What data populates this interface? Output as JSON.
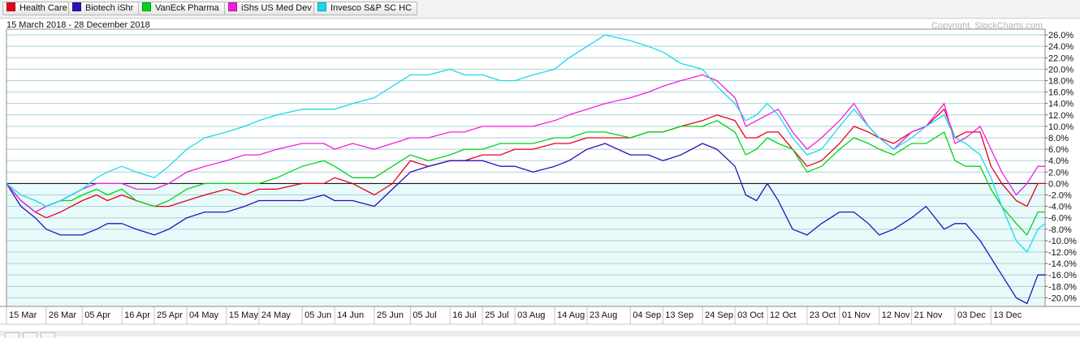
{
  "legend": [
    {
      "name": "Health Care",
      "color": "#e8001c"
    },
    {
      "name": "Biotech iShr",
      "color": "#2a10b8"
    },
    {
      "name": "VanEck Pharma",
      "color": "#00d418"
    },
    {
      "name": "iShs US Med Dev",
      "color": "#f01ee0"
    },
    {
      "name": "Invesco S&P SC HC",
      "color": "#1ad8ec"
    }
  ],
  "header": {
    "date_range": "15 March 2018 - 28 December 2018",
    "copyright": "Copyright, StockCharts.com"
  },
  "chart_data": {
    "type": "line",
    "ylim": [
      -21.5,
      27
    ],
    "y_ticks": [
      26,
      24,
      22,
      20,
      18,
      16,
      14,
      12,
      10,
      8,
      6,
      4,
      2,
      0,
      -2,
      -4,
      -6,
      -8,
      -10,
      -12,
      -14,
      -16,
      -18,
      -20
    ],
    "y_tick_labels": [
      "26.0%",
      "24.0%",
      "22.0%",
      "20.0%",
      "18.0%",
      "16.0%",
      "14.0%",
      "12.0%",
      "10.0%",
      "8.0%",
      "6.0%",
      "4.0%",
      "2.0%",
      "0.0%",
      "-2.0%",
      "-4.0%",
      "-6.0%",
      "-8.0%",
      "-10.0%",
      "-12.0%",
      "-14.0%",
      "-16.0%",
      "-18.0%",
      "-20.0%"
    ],
    "x_labels": [
      {
        "label": "15 Mar",
        "day": 0
      },
      {
        "label": "26 Mar",
        "day": 11
      },
      {
        "label": "05 Apr",
        "day": 21
      },
      {
        "label": "16 Apr",
        "day": 32
      },
      {
        "label": "25 Apr",
        "day": 41
      },
      {
        "label": "04 May",
        "day": 50
      },
      {
        "label": "15 May",
        "day": 61
      },
      {
        "label": "24 May",
        "day": 70
      },
      {
        "label": "05 Jun",
        "day": 82
      },
      {
        "label": "14 Jun",
        "day": 91
      },
      {
        "label": "25 Jun",
        "day": 102
      },
      {
        "label": "05 Jul",
        "day": 112
      },
      {
        "label": "16 Jul",
        "day": 123
      },
      {
        "label": "25 Jul",
        "day": 132
      },
      {
        "label": "03 Aug",
        "day": 141
      },
      {
        "label": "14 Aug",
        "day": 152
      },
      {
        "label": "23 Aug",
        "day": 161
      },
      {
        "label": "04 Sep",
        "day": 173
      },
      {
        "label": "13 Sep",
        "day": 182
      },
      {
        "label": "24 Sep",
        "day": 193
      },
      {
        "label": "03 Oct",
        "day": 202
      },
      {
        "label": "12 Oct",
        "day": 211
      },
      {
        "label": "23 Oct",
        "day": 222
      },
      {
        "label": "01 Nov",
        "day": 231
      },
      {
        "label": "12 Nov",
        "day": 242
      },
      {
        "label": "21 Nov",
        "day": 251
      },
      {
        "label": "03 Dec",
        "day": 263
      },
      {
        "label": "13 Dec",
        "day": 273
      }
    ],
    "x_range_days": [
      0,
      288
    ],
    "series": [
      {
        "name": "Health Care",
        "color": "#e8001c",
        "x": [
          0,
          4,
          8,
          11,
          15,
          18,
          21,
          25,
          28,
          32,
          36,
          41,
          45,
          50,
          55,
          61,
          66,
          70,
          75,
          82,
          88,
          91,
          96,
          102,
          107,
          112,
          117,
          123,
          127,
          132,
          137,
          141,
          146,
          152,
          156,
          161,
          166,
          173,
          178,
          182,
          187,
          193,
          197,
          202,
          205,
          208,
          211,
          214,
          218,
          222,
          226,
          231,
          235,
          239,
          242,
          246,
          251,
          255,
          260,
          263,
          266,
          270,
          273,
          276,
          280,
          283,
          286,
          288
        ],
        "y": [
          0,
          -3,
          -5,
          -6,
          -5,
          -4,
          -3,
          -2,
          -3,
          -2,
          -3,
          -4,
          -4,
          -3,
          -2,
          -1,
          -2,
          -1,
          -1,
          0,
          0,
          1,
          0,
          -2,
          0,
          4,
          3,
          4,
          4,
          5,
          5,
          6,
          6,
          7,
          7,
          8,
          8,
          8,
          9,
          9,
          10,
          11,
          12,
          11,
          8,
          8,
          9,
          9,
          6,
          3,
          4,
          7,
          10,
          9,
          8,
          7,
          9,
          10,
          13,
          8,
          9,
          9,
          3,
          0,
          -3,
          -4,
          0,
          0
        ]
      },
      {
        "name": "Biotech iShr",
        "color": "#2a10b8",
        "x": [
          0,
          4,
          8,
          11,
          15,
          18,
          21,
          25,
          28,
          32,
          36,
          41,
          45,
          50,
          55,
          61,
          66,
          70,
          75,
          82,
          88,
          91,
          96,
          102,
          107,
          112,
          117,
          123,
          127,
          132,
          137,
          141,
          146,
          152,
          156,
          161,
          166,
          173,
          178,
          182,
          187,
          193,
          197,
          202,
          205,
          208,
          211,
          214,
          218,
          222,
          226,
          231,
          235,
          239,
          242,
          246,
          251,
          255,
          260,
          263,
          266,
          270,
          273,
          276,
          280,
          283,
          286,
          288
        ],
        "y": [
          0,
          -4,
          -6,
          -8,
          -9,
          -9,
          -9,
          -8,
          -7,
          -7,
          -8,
          -9,
          -8,
          -6,
          -5,
          -5,
          -4,
          -3,
          -3,
          -3,
          -2,
          -3,
          -3,
          -4,
          -1,
          2,
          3,
          4,
          4,
          4,
          3,
          3,
          2,
          3,
          4,
          6,
          7,
          5,
          5,
          4,
          5,
          7,
          6,
          3,
          -2,
          -3,
          0,
          -3,
          -8,
          -9,
          -7,
          -5,
          -5,
          -7,
          -9,
          -8,
          -6,
          -4,
          -8,
          -7,
          -7,
          -10,
          -13,
          -16,
          -20,
          -21,
          -16,
          -16
        ]
      },
      {
        "name": "VanEck Pharma",
        "color": "#00d418",
        "x": [
          0,
          4,
          8,
          11,
          15,
          18,
          21,
          25,
          28,
          32,
          36,
          41,
          45,
          50,
          55,
          61,
          66,
          70,
          75,
          82,
          88,
          91,
          96,
          102,
          107,
          112,
          117,
          123,
          127,
          132,
          137,
          141,
          146,
          152,
          156,
          161,
          166,
          173,
          178,
          182,
          187,
          193,
          197,
          202,
          205,
          208,
          211,
          214,
          218,
          222,
          226,
          231,
          235,
          239,
          242,
          246,
          251,
          255,
          260,
          263,
          266,
          270,
          273,
          276,
          280,
          283,
          286,
          288
        ],
        "y": [
          0,
          -3,
          -5,
          -4,
          -3,
          -3,
          -2,
          -1,
          -2,
          -1,
          -3,
          -4,
          -3,
          -1,
          0,
          0,
          0,
          0,
          1,
          3,
          4,
          3,
          1,
          1,
          3,
          5,
          4,
          5,
          6,
          6,
          7,
          7,
          7,
          8,
          8,
          9,
          9,
          8,
          9,
          9,
          10,
          10,
          11,
          9,
          5,
          6,
          8,
          7,
          6,
          2,
          3,
          6,
          8,
          7,
          6,
          5,
          7,
          7,
          9,
          4,
          3,
          3,
          -1,
          -4,
          -7,
          -9,
          -5,
          -5
        ]
      },
      {
        "name": "iShs US Med Dev",
        "color": "#f01ee0",
        "x": [
          0,
          4,
          8,
          11,
          15,
          18,
          21,
          25,
          28,
          32,
          36,
          41,
          45,
          50,
          55,
          61,
          66,
          70,
          75,
          82,
          88,
          91,
          96,
          102,
          107,
          112,
          117,
          123,
          127,
          132,
          137,
          141,
          146,
          152,
          156,
          161,
          166,
          173,
          178,
          182,
          187,
          193,
          197,
          202,
          205,
          208,
          211,
          214,
          218,
          222,
          226,
          231,
          235,
          239,
          242,
          246,
          251,
          255,
          260,
          263,
          266,
          270,
          273,
          276,
          280,
          283,
          286,
          288
        ],
        "y": [
          0,
          -3,
          -5,
          -4,
          -3,
          -2,
          -1,
          0,
          0,
          0,
          -1,
          -1,
          0,
          2,
          3,
          4,
          5,
          5,
          6,
          7,
          7,
          6,
          7,
          6,
          7,
          8,
          8,
          9,
          9,
          10,
          10,
          10,
          10,
          11,
          12,
          13,
          14,
          15,
          16,
          17,
          18,
          19,
          18,
          15,
          10,
          11,
          12,
          13,
          9,
          6,
          8,
          11,
          14,
          10,
          8,
          6,
          9,
          10,
          14,
          7,
          8,
          10,
          6,
          2,
          -2,
          0,
          3,
          3
        ]
      },
      {
        "name": "Invesco S&P SC HC",
        "color": "#1ad8ec",
        "x": [
          0,
          4,
          8,
          11,
          15,
          18,
          21,
          25,
          28,
          32,
          36,
          41,
          45,
          50,
          55,
          61,
          66,
          70,
          75,
          82,
          88,
          91,
          96,
          102,
          107,
          112,
          117,
          123,
          127,
          132,
          137,
          141,
          146,
          152,
          156,
          161,
          166,
          173,
          178,
          182,
          187,
          193,
          197,
          202,
          205,
          208,
          211,
          214,
          218,
          222,
          226,
          231,
          235,
          239,
          242,
          246,
          251,
          255,
          260,
          263,
          266,
          270,
          273,
          276,
          280,
          283,
          286,
          288
        ],
        "y": [
          0,
          -2,
          -3,
          -4,
          -3,
          -2,
          -1,
          1,
          2,
          3,
          2,
          1,
          3,
          6,
          8,
          9,
          10,
          11,
          12,
          13,
          13,
          13,
          14,
          15,
          17,
          19,
          19,
          20,
          19,
          19,
          18,
          18,
          19,
          20,
          22,
          24,
          26,
          25,
          24,
          23,
          21,
          20,
          17,
          14,
          11,
          12,
          14,
          12,
          8,
          5,
          6,
          10,
          13,
          10,
          8,
          6,
          8,
          10,
          12,
          8,
          7,
          5,
          1,
          -4,
          -10,
          -12,
          -8,
          -7
        ]
      }
    ]
  }
}
